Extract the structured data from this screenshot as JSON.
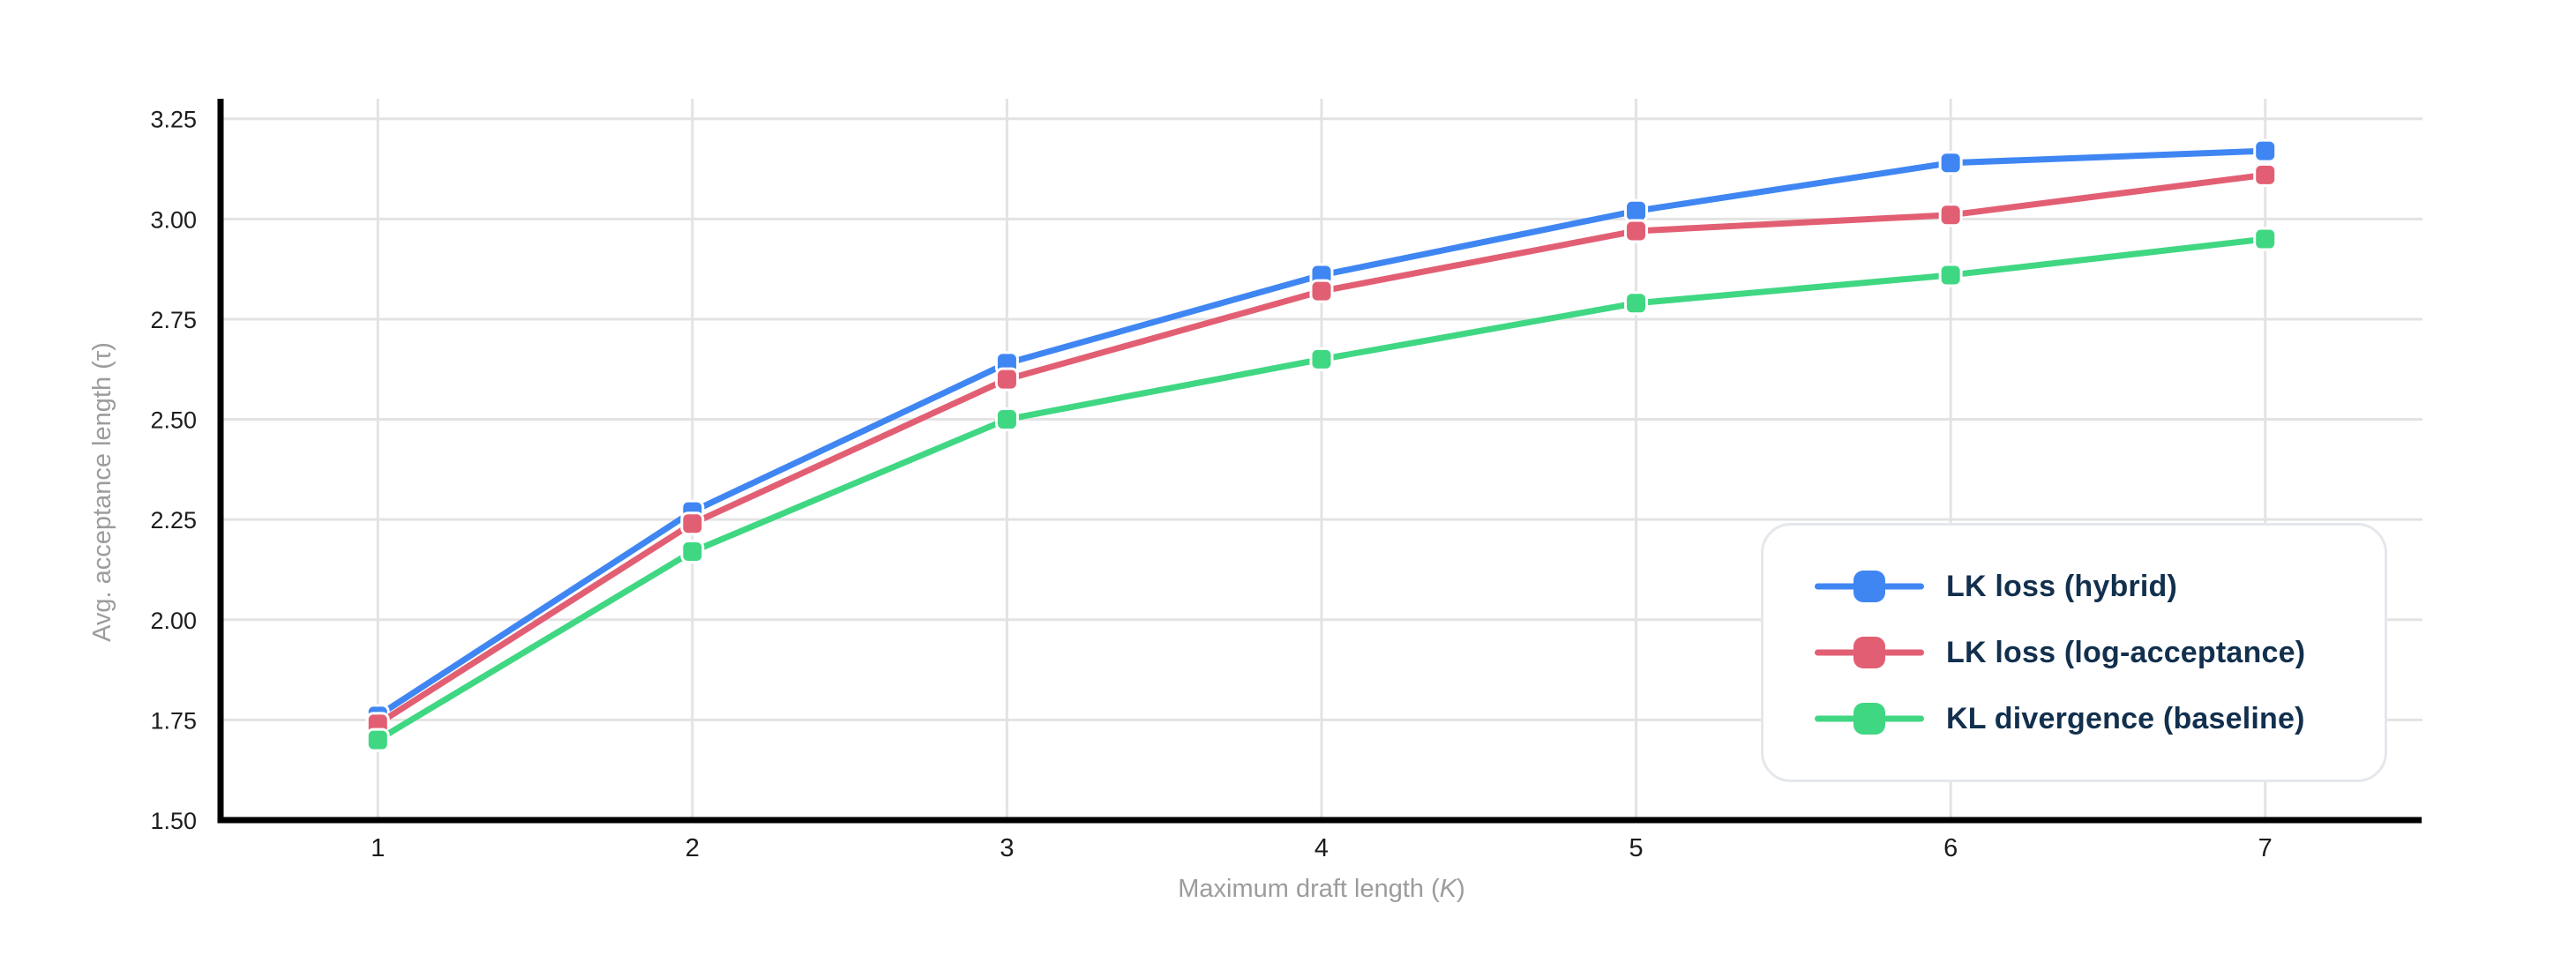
{
  "chart_data": {
    "type": "line",
    "title": "",
    "xlabel": "Maximum draft length (K)",
    "xlabel_prefix": "Maximum draft length (",
    "xlabel_italic_var": "K",
    "xlabel_suffix": ")",
    "ylabel": "Avg. acceptance length (τ)",
    "x": [
      1,
      2,
      3,
      4,
      5,
      6,
      7
    ],
    "xtick_labels": [
      "1",
      "2",
      "3",
      "4",
      "5",
      "6",
      "7"
    ],
    "yticks": [
      1.5,
      1.75,
      2.0,
      2.25,
      2.5,
      2.75,
      3.0,
      3.25
    ],
    "ytick_labels": [
      "1.50",
      "1.75",
      "2.00",
      "2.25",
      "2.50",
      "2.75",
      "3.00",
      "3.25"
    ],
    "xlim": [
      0.5,
      7.5
    ],
    "ylim": [
      1.5,
      3.3
    ],
    "grid": true,
    "legend_position": "lower-right",
    "series": [
      {
        "name": "LK loss (hybrid)",
        "color": "#3f86f3",
        "values": [
          1.76,
          2.27,
          2.64,
          2.86,
          3.02,
          3.14,
          3.17
        ]
      },
      {
        "name": "LK loss (log-acceptance)",
        "color": "#e25f73",
        "values": [
          1.74,
          2.24,
          2.6,
          2.82,
          2.97,
          3.01,
          3.11
        ]
      },
      {
        "name": "KL divergence (baseline)",
        "color": "#40d783",
        "values": [
          1.7,
          2.17,
          2.5,
          2.65,
          2.79,
          2.86,
          2.95
        ]
      }
    ]
  },
  "colors": {
    "background": "#ffffff",
    "axis_line": "#000000",
    "gridline": "#e3e3e3",
    "tick_label": "#1c1c1c",
    "axis_title": "#9c9c9c",
    "legend_text": "#12304e",
    "legend_border": "#e4e7eb",
    "marker_stroke": "#ffffff"
  }
}
